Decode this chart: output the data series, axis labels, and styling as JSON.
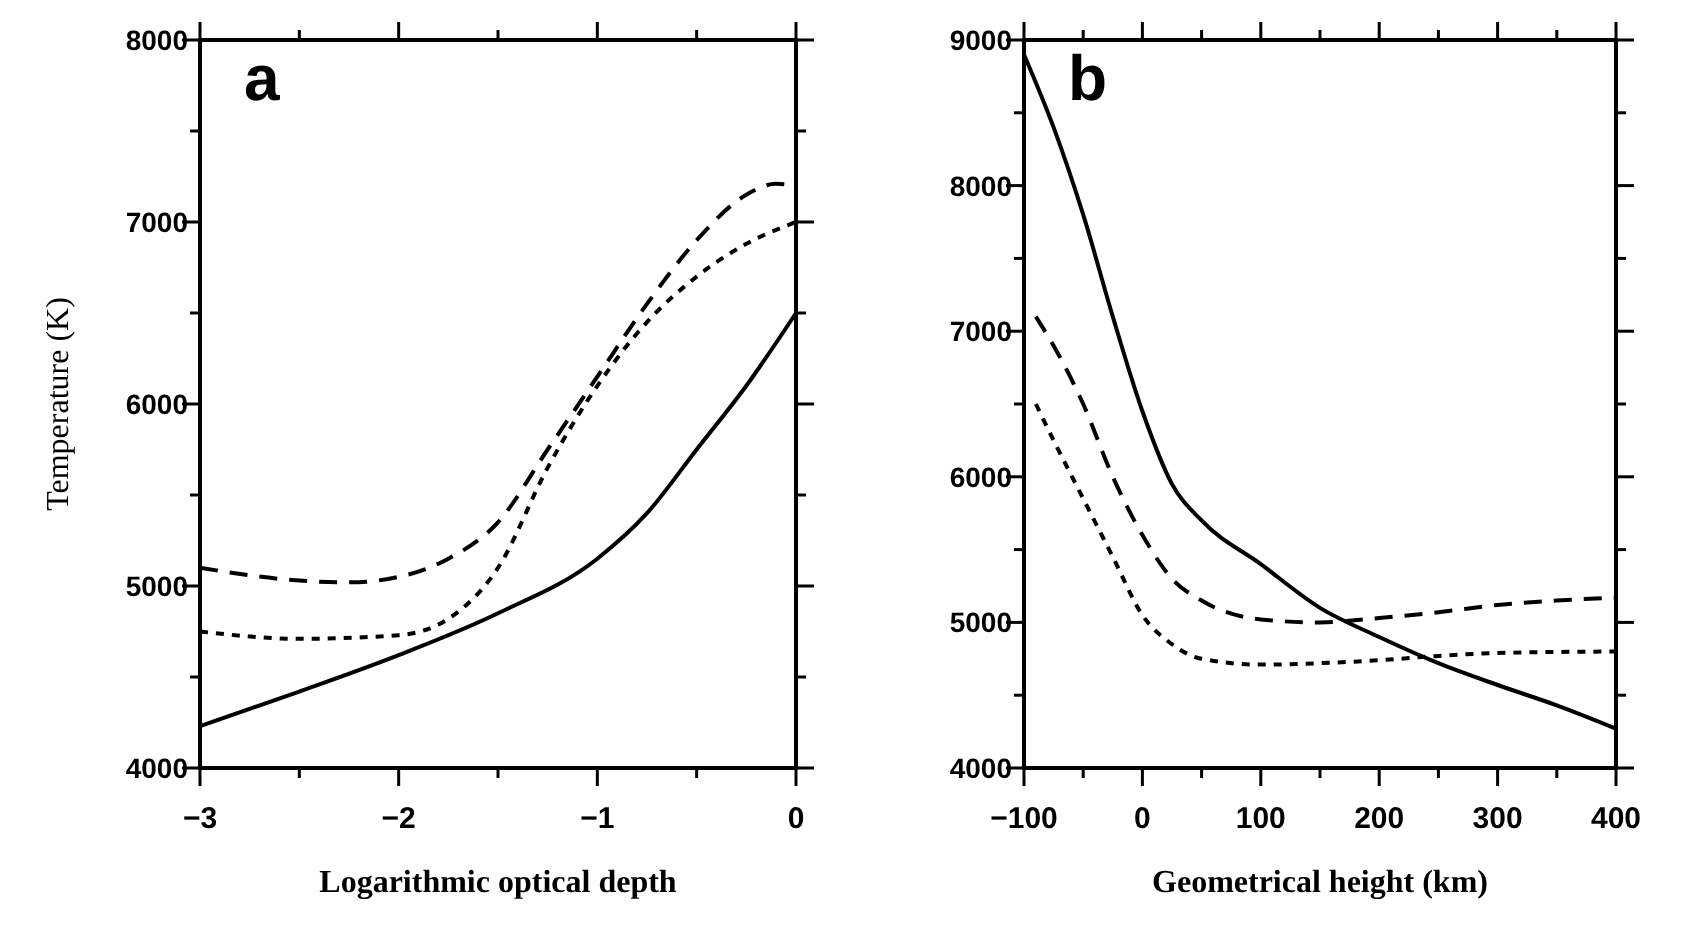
{
  "chart_data": [
    {
      "type": "line",
      "title": "a",
      "xlabel": "Logarithmic optical depth",
      "ylabel": "Temperature (K)",
      "xlim": [
        -3,
        0
      ],
      "ylim": [
        4000,
        8000
      ],
      "xticks": [
        {
          "value": -3,
          "label": "−3"
        },
        {
          "value": -2.5,
          "label": null
        },
        {
          "value": -2,
          "label": "−2"
        },
        {
          "value": -1.5,
          "label": null
        },
        {
          "value": -1,
          "label": "−1"
        },
        {
          "value": -0.5,
          "label": null
        },
        0
      ],
      "yticks": [
        4000,
        {
          "value": 4500,
          "label": null
        },
        5000,
        {
          "value": 5500,
          "label": null
        },
        6000,
        {
          "value": 6500,
          "label": null
        },
        7000,
        {
          "value": 7500,
          "label": null
        },
        8000
      ],
      "series": [
        {
          "color": "#000000",
          "line_style": "solid",
          "x": [
            -3,
            -2.5,
            -2,
            -1.5,
            -1,
            -0.75,
            -0.5,
            -0.25,
            0
          ],
          "values": [
            4230,
            4420,
            4620,
            4850,
            5150,
            5400,
            5750,
            6100,
            6500
          ]
        },
        {
          "color": "#000000",
          "line_style": "dashed",
          "x": [
            -3,
            -2.5,
            -2.25,
            -2,
            -1.75,
            -1.5,
            -1.25,
            -1,
            -0.75,
            -0.5,
            -0.25,
            -0.1,
            0
          ],
          "values": [
            5100,
            5030,
            5020,
            5050,
            5150,
            5350,
            5750,
            6150,
            6550,
            6900,
            7150,
            7210,
            7200
          ]
        },
        {
          "color": "#000000",
          "line_style": "dotted",
          "x": [
            -3,
            -2.5,
            -2,
            -1.75,
            -1.5,
            -1.25,
            -1,
            -0.75,
            -0.5,
            -0.25,
            0
          ],
          "values": [
            4750,
            4710,
            4730,
            4820,
            5100,
            5650,
            6100,
            6450,
            6700,
            6880,
            7000
          ]
        }
      ]
    },
    {
      "type": "line",
      "title": "b",
      "xlabel": "Geometrical height (km)",
      "xlim": [
        -100,
        400
      ],
      "ylim": [
        4000,
        9000
      ],
      "xticks": [
        {
          "value": -100,
          "label": "−100"
        },
        {
          "value": -50,
          "label": null
        },
        0,
        {
          "value": 50,
          "label": null
        },
        100,
        {
          "value": 150,
          "label": null
        },
        200,
        {
          "value": 250,
          "label": null
        },
        300,
        {
          "value": 350,
          "label": null
        },
        400
      ],
      "yticks": [
        4000,
        {
          "value": 4500,
          "label": null
        },
        5000,
        {
          "value": 5500,
          "label": null
        },
        6000,
        {
          "value": 6500,
          "label": null
        },
        7000,
        {
          "value": 7500,
          "label": null
        },
        8000,
        {
          "value": 8500,
          "label": null
        },
        9000
      ],
      "series": [
        {
          "color": "#000000",
          "line_style": "solid",
          "x": [
            -100,
            -75,
            -50,
            -25,
            0,
            25,
            50,
            100,
            150,
            200,
            250,
            300,
            350,
            400
          ],
          "values": [
            8900,
            8400,
            7800,
            7100,
            6450,
            5950,
            5700,
            5400,
            5100,
            4900,
            4720,
            4570,
            4430,
            4270
          ]
        },
        {
          "color": "#000000",
          "line_style": "dashed",
          "x": [
            -90,
            -75,
            -50,
            -25,
            0,
            25,
            50,
            100,
            150,
            200,
            250,
            300,
            350,
            400
          ],
          "values": [
            7100,
            6900,
            6500,
            6000,
            5600,
            5300,
            5150,
            5020,
            5000,
            5030,
            5070,
            5120,
            5150,
            5170
          ]
        },
        {
          "color": "#000000",
          "line_style": "dotted",
          "x": [
            -90,
            -75,
            -50,
            -25,
            0,
            25,
            50,
            100,
            150,
            200,
            250,
            300,
            400
          ],
          "values": [
            6500,
            6250,
            5850,
            5450,
            5050,
            4850,
            4750,
            4710,
            4720,
            4740,
            4770,
            4790,
            4800
          ]
        }
      ]
    }
  ]
}
